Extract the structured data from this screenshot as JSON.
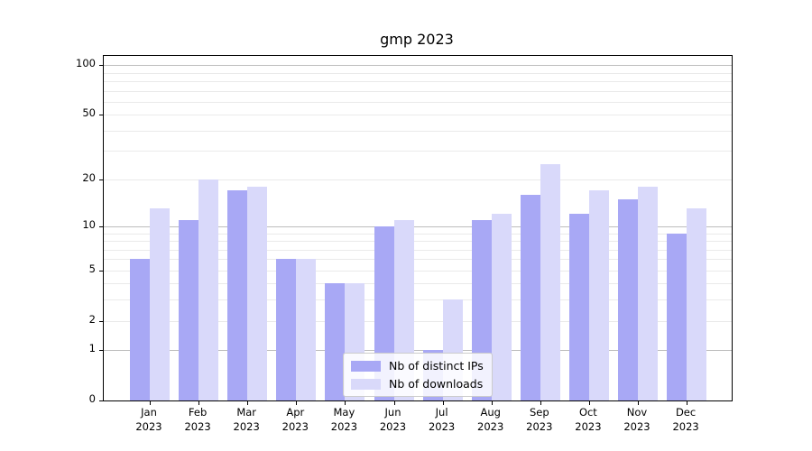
{
  "chart_data": {
    "type": "bar",
    "title": "gmp 2023",
    "categories": [
      "Jan",
      "Feb",
      "Mar",
      "Apr",
      "May",
      "Jun",
      "Jul",
      "Aug",
      "Sep",
      "Oct",
      "Nov",
      "Dec"
    ],
    "year_label": "2023",
    "series": [
      {
        "name": "Nb of distinct IPs",
        "color": "#a8a8f5",
        "values": [
          6,
          11,
          17,
          6,
          4,
          10,
          1,
          11,
          16,
          12,
          15,
          9
        ]
      },
      {
        "name": "Nb of downloads",
        "color": "#d9d9fa",
        "values": [
          13,
          20,
          18,
          6,
          4,
          11,
          3,
          12,
          25,
          17,
          18,
          13
        ]
      }
    ],
    "yscale": "log1p",
    "ylim": [
      0,
      114
    ],
    "yticks": [
      100,
      50,
      20,
      10,
      5,
      2,
      1,
      0
    ],
    "major_gridlines": [
      1,
      10,
      100
    ],
    "minor_gridlines": [
      2,
      3,
      4,
      5,
      6,
      7,
      8,
      9,
      20,
      30,
      40,
      50,
      60,
      70,
      80,
      90
    ],
    "grid": true,
    "legend_position": "lower center"
  },
  "colors": {
    "background": "#ffffff",
    "axis": "#000000",
    "grid_major": "#bdbdbd",
    "grid_minor": "#eaeaea",
    "text": "#000000",
    "legend_border": "#cccccc"
  }
}
